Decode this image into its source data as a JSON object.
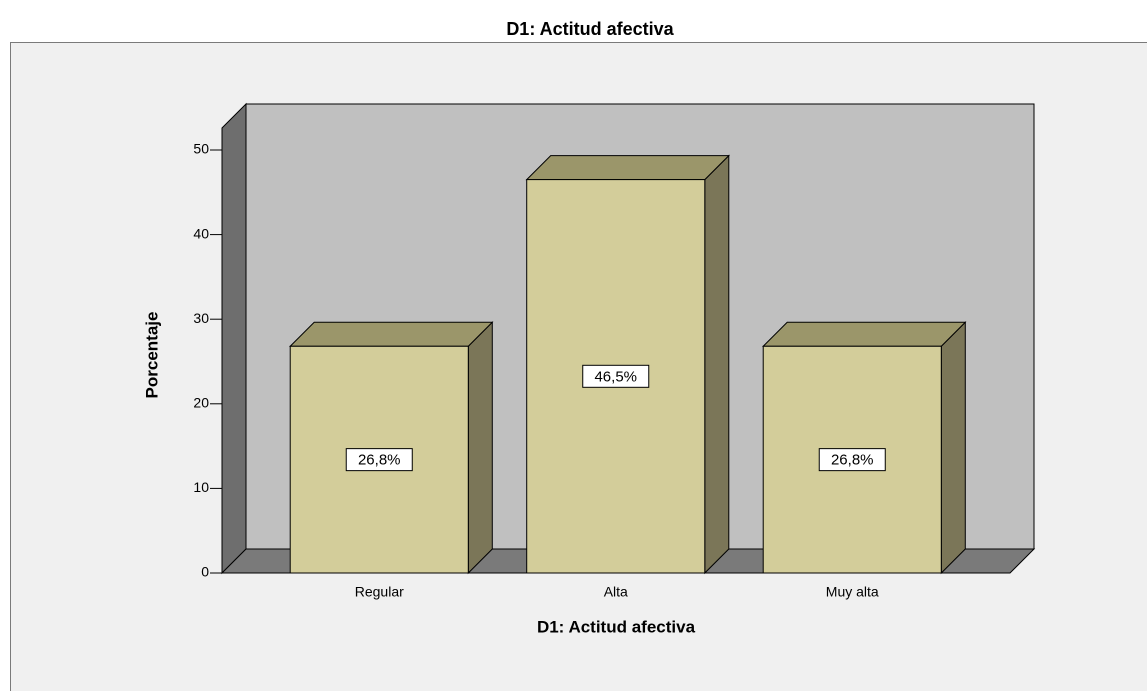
{
  "chart_data": {
    "type": "bar3d",
    "title": "D1: Actitud afectiva",
    "x_label": "D1: Actitud afectiva",
    "y_label": "Porcentaje",
    "categories": [
      "Regular",
      "Alta",
      "Muy alta"
    ],
    "values": [
      26.8,
      46.5,
      26.8
    ],
    "value_labels": [
      "26,8%",
      "46,5%",
      "26,8%"
    ],
    "color": "#d3cd9a",
    "ylim": [
      0,
      52.6
    ],
    "yticks": [
      0,
      10,
      20,
      30,
      40,
      50
    ]
  }
}
